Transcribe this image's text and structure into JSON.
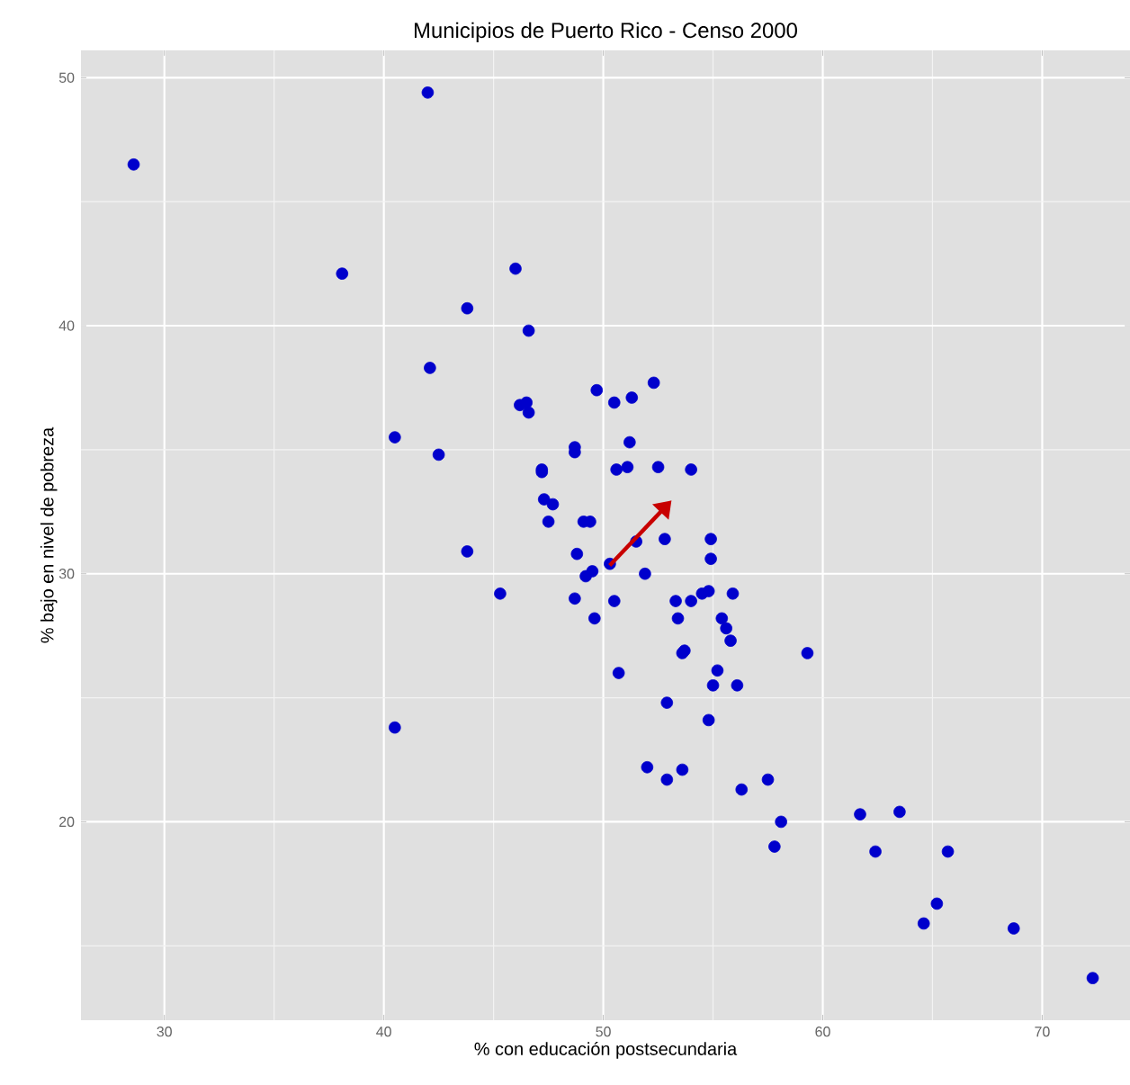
{
  "chart_data": {
    "type": "scatter",
    "title": "Municipios de Puerto Rico - Censo 2000",
    "xlabel": "% con educación postsecundaria",
    "ylabel": "% bajo en nivel de pobreza",
    "xlim": [
      26.2,
      74.0
    ],
    "ylim": [
      12.0,
      51.1
    ],
    "xticks": [
      30,
      40,
      50,
      60,
      70
    ],
    "yticks": [
      20,
      30,
      40,
      50
    ],
    "grid": true,
    "series": [
      {
        "color": "#0000cc",
        "x": [
          28.6,
          42.0,
          38.1,
          46.0,
          43.8,
          46.6,
          42.1,
          49.7,
          50.5,
          51.3,
          52.3,
          46.2,
          46.5,
          46.6,
          40.5,
          42.5,
          48.7,
          48.7,
          51.2,
          47.2,
          47.2,
          50.6,
          51.1,
          52.5,
          54.0,
          47.3,
          47.7,
          47.5,
          49.1,
          49.4,
          51.5,
          52.8,
          54.9,
          54.9,
          48.8,
          50.3,
          49.5,
          49.2,
          51.9,
          43.8,
          45.3,
          48.7,
          49.6,
          50.5,
          53.3,
          53.4,
          54.0,
          54.5,
          54.8,
          55.9,
          55.4,
          55.6,
          55.8,
          53.6,
          53.7,
          59.3,
          50.7,
          55.2,
          55.0,
          56.1,
          52.9,
          54.8,
          40.5,
          52.0,
          52.9,
          53.6,
          56.3,
          57.5,
          58.1,
          57.8,
          61.7,
          63.5,
          62.4,
          65.7,
          65.2,
          64.6,
          68.7,
          72.3
        ],
        "values": [
          46.5,
          49.4,
          42.1,
          42.3,
          40.7,
          39.8,
          38.3,
          37.4,
          36.9,
          37.1,
          37.7,
          36.8,
          36.9,
          36.5,
          35.5,
          34.8,
          35.1,
          34.9,
          35.3,
          34.2,
          34.1,
          34.2,
          34.3,
          34.3,
          34.2,
          33.0,
          32.8,
          32.1,
          32.1,
          32.1,
          31.3,
          31.4,
          31.4,
          30.6,
          30.8,
          30.4,
          30.1,
          29.9,
          30.0,
          30.9,
          29.2,
          29.0,
          28.2,
          28.9,
          28.9,
          28.2,
          28.9,
          29.2,
          29.3,
          29.2,
          28.2,
          27.8,
          27.3,
          26.8,
          26.9,
          26.8,
          26.0,
          26.1,
          25.5,
          25.5,
          24.8,
          24.1,
          23.8,
          22.2,
          21.7,
          22.1,
          21.3,
          21.7,
          20.0,
          19.0,
          20.3,
          20.4,
          18.8,
          18.8,
          16.7,
          15.9,
          15.7,
          13.7
        ]
      }
    ]
  }
}
